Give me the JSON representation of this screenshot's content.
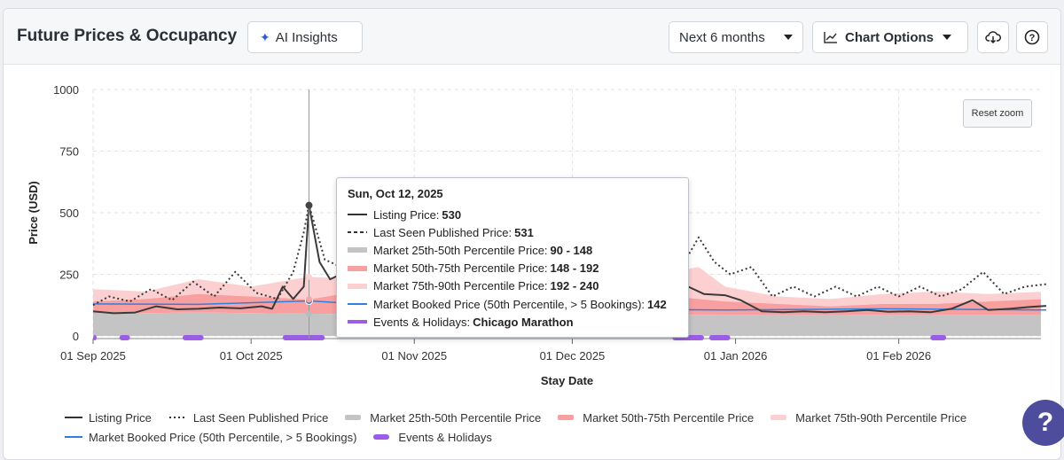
{
  "header": {
    "title": "Future Prices & Occupancy",
    "ai_insights_label": "AI Insights",
    "range_label": "Next 6 months",
    "chart_options_label": "Chart Options"
  },
  "reset_zoom_label": "Reset zoom",
  "tooltip": {
    "date": "Sun, Oct 12, 2025",
    "rows": [
      {
        "label": "Listing Price:",
        "value": "530"
      },
      {
        "label": "Last Seen Published Price:",
        "value": "531"
      },
      {
        "label": "Market 25th-50th Percentile Price:",
        "value": "90 - 148"
      },
      {
        "label": "Market 50th-75th Percentile Price:",
        "value": "148 - 192"
      },
      {
        "label": "Market 75th-90th Percentile Price:",
        "value": "192 - 240"
      },
      {
        "label": "Market Booked Price (50th Percentile, > 5 Bookings):",
        "value": "142"
      },
      {
        "label": "Events & Holidays:",
        "value": "Chicago Marathon"
      }
    ]
  },
  "colors": {
    "listing": "#3a3a3a",
    "published": "#3a3a3a",
    "p25_50": "#c4c4c4",
    "p50_75": "#f8a0a0",
    "p75_90": "#fcd0d0",
    "booked": "#2f7fe0",
    "events": "#9b5de5"
  },
  "chart_data": {
    "type": "area",
    "xlabel": "Stay Date",
    "ylabel": "Price (USD)",
    "ylim": [
      0,
      1000
    ],
    "yticks": [
      "0",
      "250",
      "500",
      "750",
      "1000"
    ],
    "xticks": [
      "01 Sep 2025",
      "01 Oct 2025",
      "01 Nov 2025",
      "01 Dec 2025",
      "01 Jan 2026",
      "01 Feb 2026"
    ],
    "xrange": [
      "2025-09-01",
      "2026-02-28"
    ],
    "grid": true,
    "legend_position": "bottom",
    "legend": [
      "Listing Price",
      "Last Seen Published Price",
      "Market 25th-50th Percentile Price",
      "Market 50th-75th Percentile Price",
      "Market 75th-90th Percentile Price",
      "Market Booked Price (50th Percentile, > 5 Bookings)",
      "Events & Holidays"
    ],
    "series": {
      "listing": [
        [
          0,
          100
        ],
        [
          4,
          92
        ],
        [
          8,
          95
        ],
        [
          12,
          120
        ],
        [
          16,
          108
        ],
        [
          20,
          110
        ],
        [
          24,
          115
        ],
        [
          28,
          112
        ],
        [
          32,
          120
        ],
        [
          34,
          110
        ],
        [
          36,
          200
        ],
        [
          38,
          150
        ],
        [
          40,
          200
        ],
        [
          41,
          530
        ],
        [
          43,
          300
        ],
        [
          45,
          230
        ],
        [
          48,
          260
        ],
        [
          52,
          230
        ],
        [
          55,
          240
        ],
        [
          59,
          250
        ],
        [
          62,
          170
        ],
        [
          66,
          165
        ],
        [
          70,
          150
        ],
        [
          75,
          160
        ],
        [
          80,
          150
        ],
        [
          85,
          160
        ],
        [
          90,
          160
        ],
        [
          95,
          165
        ],
        [
          100,
          150
        ],
        [
          105,
          180
        ],
        [
          110,
          150
        ],
        [
          113,
          200
        ],
        [
          116,
          170
        ],
        [
          120,
          165
        ],
        [
          123,
          145
        ],
        [
          127,
          100
        ],
        [
          131,
          96
        ],
        [
          135,
          100
        ],
        [
          139,
          96
        ],
        [
          143,
          100
        ],
        [
          147,
          105
        ],
        [
          151,
          98
        ],
        [
          155,
          100
        ],
        [
          159,
          96
        ],
        [
          163,
          110
        ],
        [
          167,
          145
        ],
        [
          170,
          105
        ],
        [
          174,
          110
        ],
        [
          178,
          118
        ],
        [
          181,
          122
        ]
      ],
      "published": [
        [
          0,
          125
        ],
        [
          3,
          160
        ],
        [
          7,
          140
        ],
        [
          11,
          190
        ],
        [
          15,
          145
        ],
        [
          19,
          220
        ],
        [
          23,
          160
        ],
        [
          27,
          260
        ],
        [
          31,
          175
        ],
        [
          35,
          150
        ],
        [
          38,
          260
        ],
        [
          40,
          420
        ],
        [
          41,
          531
        ],
        [
          44,
          310
        ],
        [
          48,
          270
        ],
        [
          52,
          255
        ],
        [
          56,
          250
        ],
        [
          60,
          240
        ],
        [
          64,
          230
        ],
        [
          68,
          220
        ],
        [
          72,
          240
        ],
        [
          76,
          220
        ],
        [
          80,
          250
        ],
        [
          84,
          230
        ],
        [
          88,
          260
        ],
        [
          92,
          250
        ],
        [
          96,
          270
        ],
        [
          100,
          260
        ],
        [
          104,
          280
        ],
        [
          108,
          300
        ],
        [
          112,
          290
        ],
        [
          115,
          400
        ],
        [
          118,
          300
        ],
        [
          121,
          250
        ],
        [
          125,
          280
        ],
        [
          129,
          160
        ],
        [
          133,
          200
        ],
        [
          137,
          160
        ],
        [
          141,
          200
        ],
        [
          145,
          160
        ],
        [
          149,
          200
        ],
        [
          153,
          160
        ],
        [
          157,
          200
        ],
        [
          161,
          160
        ],
        [
          165,
          190
        ],
        [
          169,
          260
        ],
        [
          173,
          170
        ],
        [
          177,
          200
        ],
        [
          181,
          210
        ]
      ],
      "p25_50": [
        [
          0,
          90
        ],
        [
          20,
          95
        ],
        [
          41,
          90
        ],
        [
          60,
          88
        ],
        [
          90,
          88
        ],
        [
          120,
          85
        ],
        [
          150,
          85
        ],
        [
          181,
          85
        ]
      ],
      "p50_75": [
        [
          0,
          140
        ],
        [
          10,
          150
        ],
        [
          20,
          170
        ],
        [
          30,
          160
        ],
        [
          41,
          148
        ],
        [
          50,
          180
        ],
        [
          60,
          170
        ],
        [
          70,
          175
        ],
        [
          80,
          170
        ],
        [
          90,
          165
        ],
        [
          100,
          175
        ],
        [
          110,
          160
        ],
        [
          120,
          140
        ],
        [
          130,
          130
        ],
        [
          140,
          120
        ],
        [
          150,
          130
        ],
        [
          160,
          130
        ],
        [
          170,
          140
        ],
        [
          181,
          150
        ]
      ],
      "p75_90": [
        [
          0,
          190
        ],
        [
          10,
          180
        ],
        [
          20,
          230
        ],
        [
          30,
          200
        ],
        [
          41,
          240
        ],
        [
          50,
          230
        ],
        [
          60,
          220
        ],
        [
          70,
          210
        ],
        [
          80,
          230
        ],
        [
          90,
          220
        ],
        [
          100,
          250
        ],
        [
          110,
          260
        ],
        [
          115,
          280
        ],
        [
          120,
          200
        ],
        [
          130,
          160
        ],
        [
          140,
          150
        ],
        [
          150,
          170
        ],
        [
          160,
          180
        ],
        [
          170,
          170
        ],
        [
          181,
          180
        ]
      ],
      "booked": [
        [
          0,
          130
        ],
        [
          20,
          128
        ],
        [
          41,
          142
        ],
        [
          60,
          118
        ],
        [
          90,
          110
        ],
        [
          120,
          105
        ],
        [
          150,
          110
        ],
        [
          181,
          105
        ]
      ]
    },
    "events": [
      [
        0,
        0.5
      ],
      [
        5,
        7
      ],
      [
        17,
        21
      ],
      [
        36,
        44
      ],
      [
        110,
        116
      ],
      [
        117,
        121
      ],
      [
        159,
        162
      ]
    ],
    "tooltip_day": 41
  }
}
